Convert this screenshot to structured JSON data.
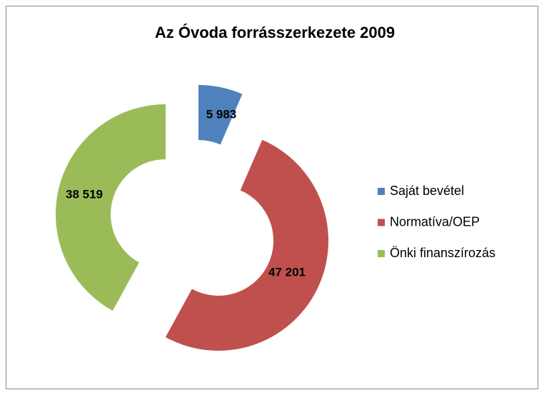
{
  "chart_data": {
    "type": "doughnut",
    "title": "Az Óvoda forrásszerkezete 2009",
    "categories": [
      "Saját bevétel",
      "Normatíva/OEP",
      "Önki finanszírozás"
    ],
    "values": [
      5983,
      47201,
      38519
    ],
    "value_labels": [
      "5 983",
      "47 201",
      "38 519"
    ],
    "colors": [
      "#4f81bd",
      "#c0504d",
      "#9bbb59"
    ],
    "legend": "right"
  }
}
